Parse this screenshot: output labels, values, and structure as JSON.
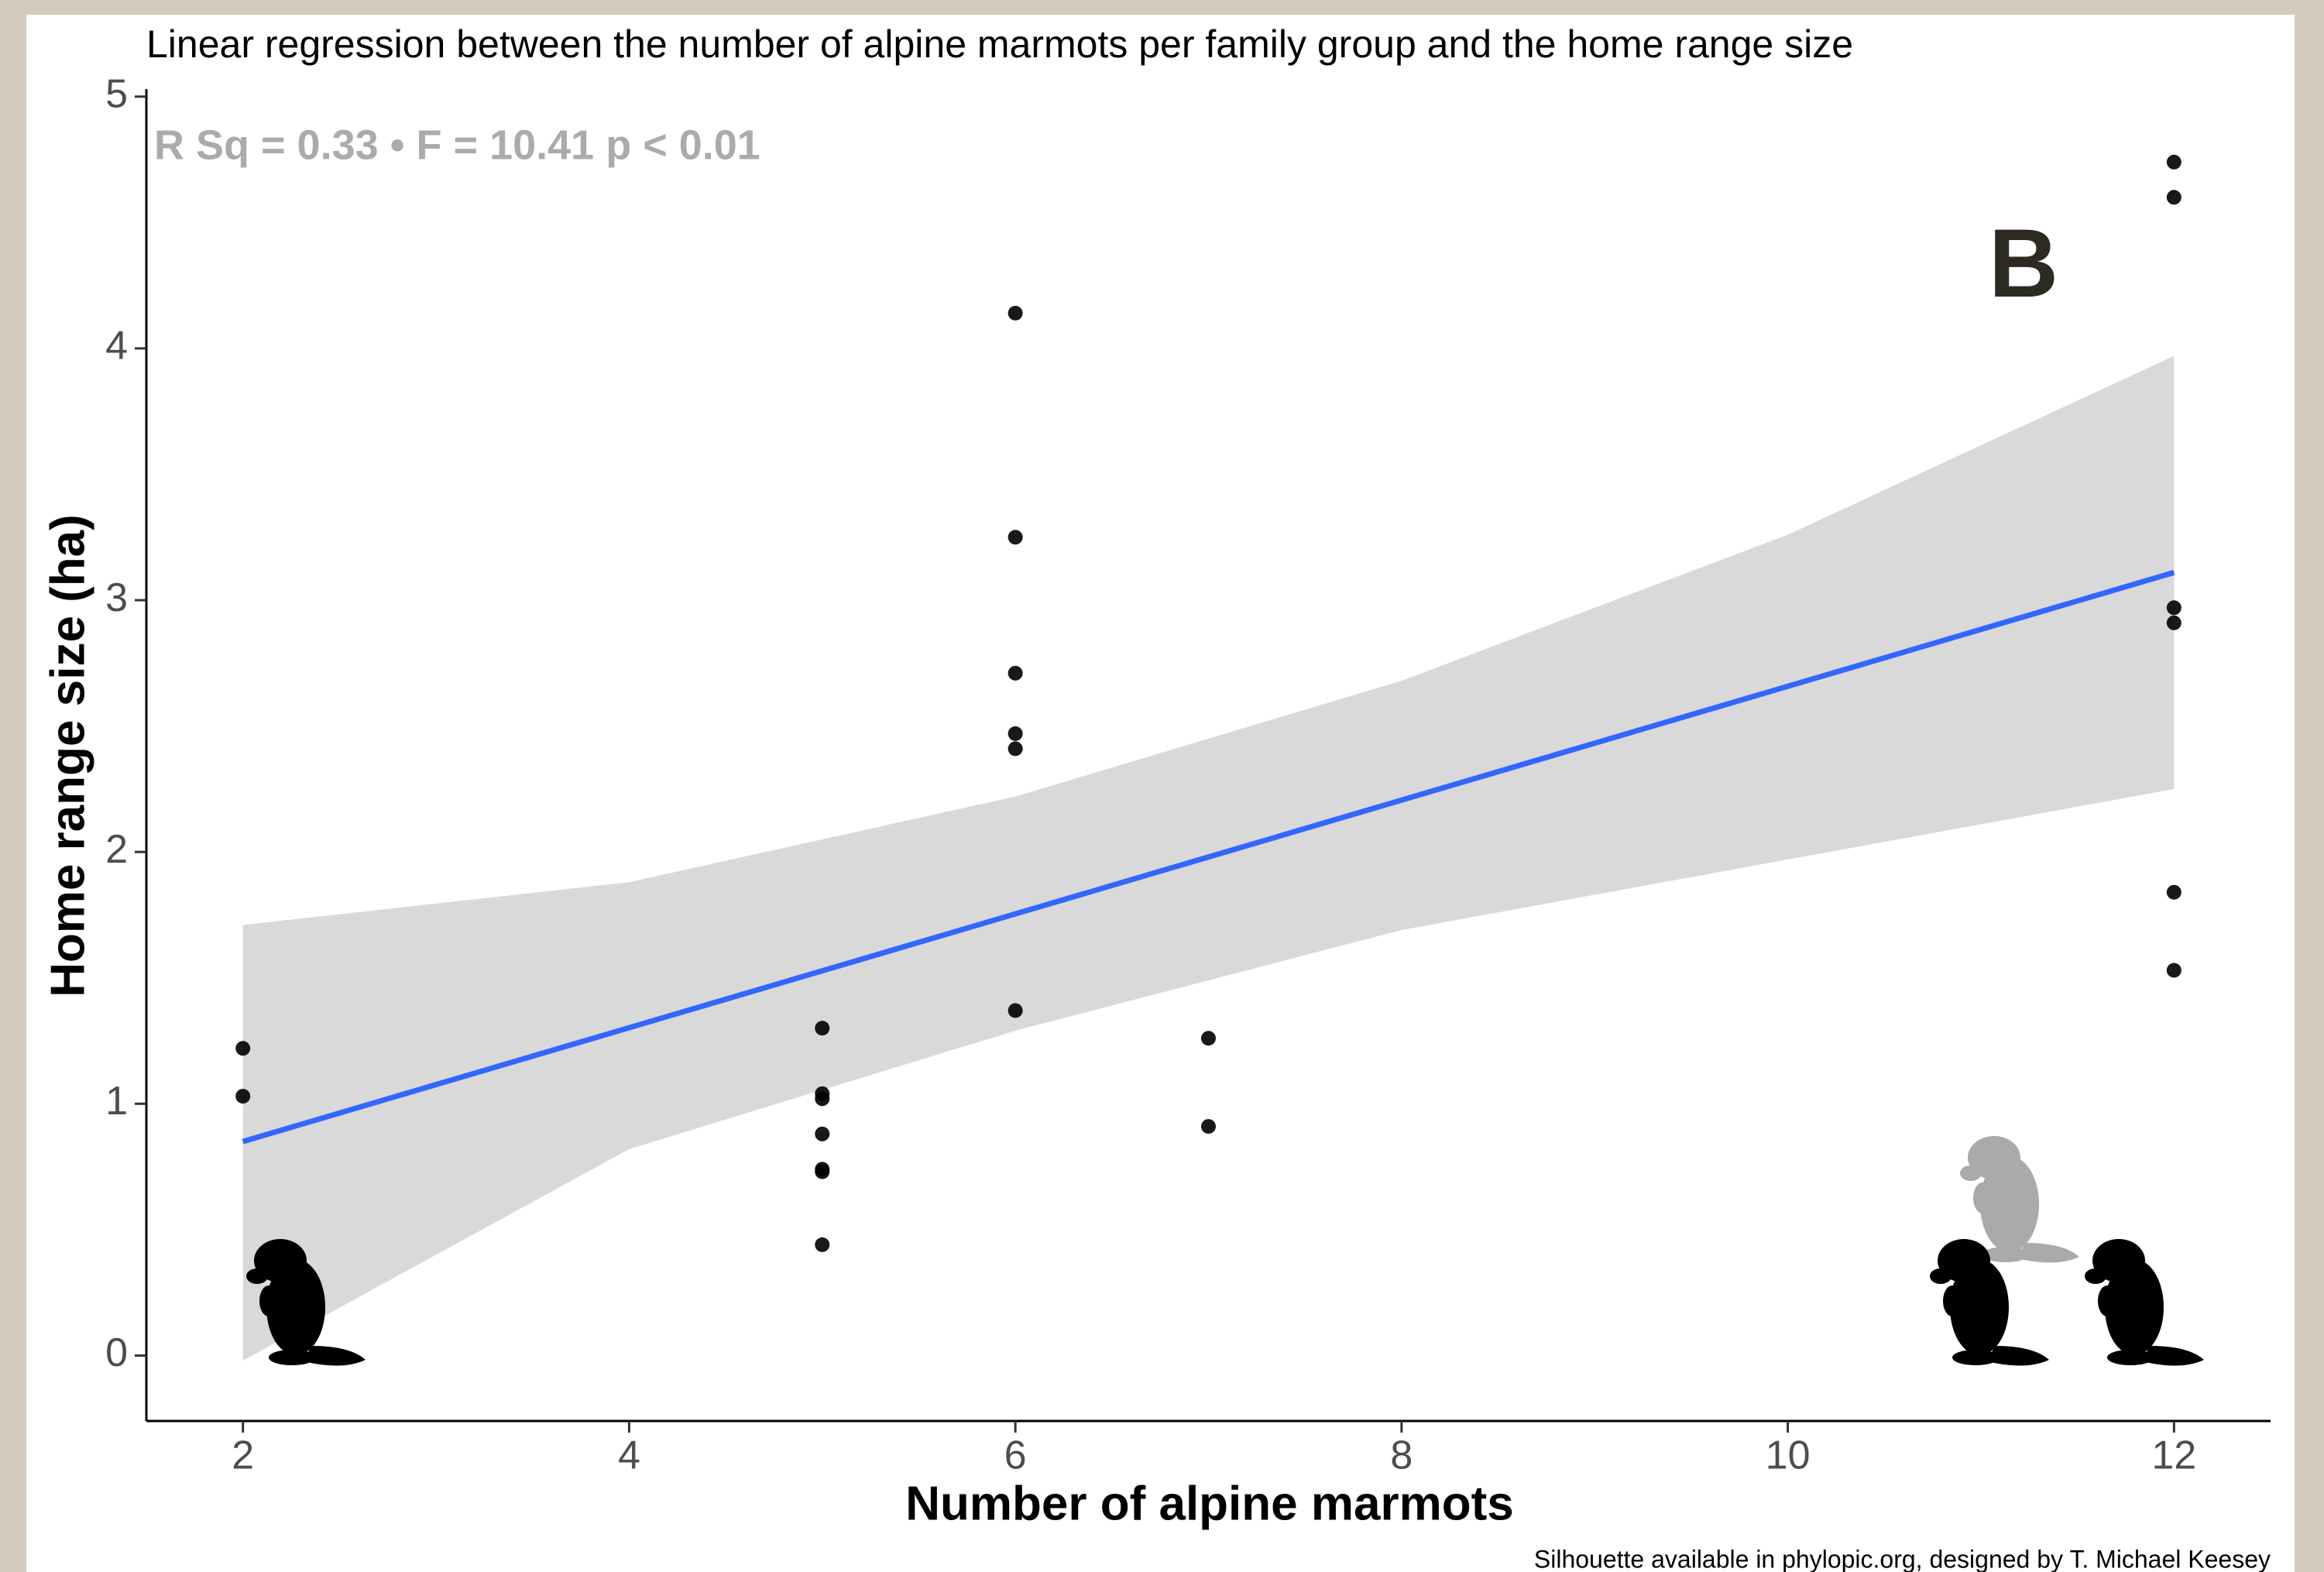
{
  "chart_data": {
    "type": "scatter",
    "title": "Linear regression between the number of alpine marmots per family group and the home range size",
    "annotation": "R Sq = 0.33 • F = 10.41 p < 0.01",
    "panel_label": "B",
    "caption": "Silhouette available in phylopic.org, designed by T. Michael Keesey",
    "x_label": "Number of alpine marmots",
    "y_label": "Home range size (ha)",
    "x": [
      2,
      2,
      5,
      5,
      5,
      5,
      5,
      5,
      5,
      6,
      6,
      6,
      6,
      6,
      6,
      7,
      7,
      12,
      12,
      12,
      12,
      12,
      12
    ],
    "values": [
      1.22,
      1.03,
      1.3,
      1.04,
      1.02,
      0.88,
      0.74,
      0.73,
      0.44,
      4.14,
      3.25,
      2.71,
      2.47,
      2.41,
      1.37,
      1.26,
      0.91,
      4.74,
      4.6,
      2.97,
      2.91,
      1.84,
      1.53
    ],
    "color": "#000000",
    "fit": {
      "x": [
        2,
        12
      ],
      "values": [
        0.85,
        3.11
      ],
      "color": "#3366ff"
    },
    "band": {
      "x": [
        2,
        4,
        6,
        8,
        10,
        12
      ],
      "lower": [
        -0.02,
        0.82,
        1.29,
        1.69,
        1.97,
        2.25
      ],
      "upper": [
        1.71,
        1.88,
        2.22,
        2.68,
        3.26,
        3.97
      ],
      "color": "#d9d9d9"
    },
    "xlim": [
      1.5,
      12.5
    ],
    "ylim": [
      -0.26,
      5.03
    ],
    "xticks": [
      2,
      4,
      6,
      8,
      10,
      12
    ],
    "yticks": [
      0,
      1,
      2,
      3,
      4,
      5
    ]
  }
}
